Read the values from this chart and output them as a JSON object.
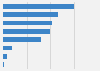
{
  "values": [
    76,
    58,
    52,
    50,
    40,
    10,
    4,
    1
  ],
  "bar_color": "#3d85c8",
  "background_color": "#f2f2f2",
  "bar_height": 0.55,
  "xlim": [
    0,
    100
  ],
  "n_bars": 8
}
